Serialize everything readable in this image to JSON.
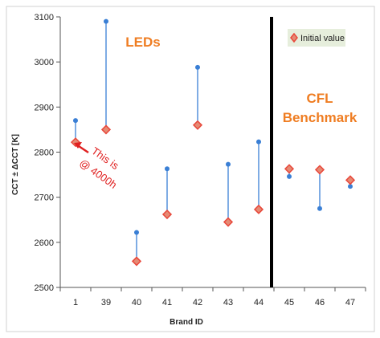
{
  "chart_data": {
    "type": "scatter",
    "title": "",
    "xlabel": "Brand ID",
    "ylabel": "CCT ± ΔCCT [K]",
    "categories": [
      "1",
      "39",
      "40",
      "41",
      "42",
      "43",
      "44",
      "45",
      "46",
      "47"
    ],
    "ylim": [
      2500,
      3100
    ],
    "yticks": [
      2500,
      2600,
      2700,
      2800,
      2900,
      3000,
      3100
    ],
    "grid": false,
    "legend": {
      "placement": "top-right",
      "entries": [
        "Initial value"
      ]
    },
    "series": [
      {
        "name": "Initial value",
        "marker": "diamond",
        "color": "#e8473a",
        "fill": "#e58a74",
        "values": [
          2822,
          2850,
          2558,
          2662,
          2860,
          2645,
          2673,
          2763,
          2761,
          2738
        ]
      },
      {
        "marker": "circle",
        "color": "#3a7fd5",
        "values": [
          2870,
          3090,
          2622,
          2763,
          2988,
          2773,
          2823,
          2746,
          2675,
          2724
        ]
      }
    ],
    "region_divider_after": "44",
    "annotations": {
      "leds_label": "LEDs",
      "cfl_label_line1": "CFL",
      "cfl_label_line2": "Benchmark",
      "note_line1": "This is",
      "note_line2": "@ 4000h"
    },
    "colors": {
      "initial_marker_stroke": "#e8473a",
      "initial_marker_fill": "#e58a74",
      "later_marker": "#3a7fd5",
      "whisker": "#3a7fd5",
      "region_label": "#ef7d22",
      "note": "#e02020",
      "divider": "#000000",
      "legend_bg": "#e6eedc"
    }
  }
}
